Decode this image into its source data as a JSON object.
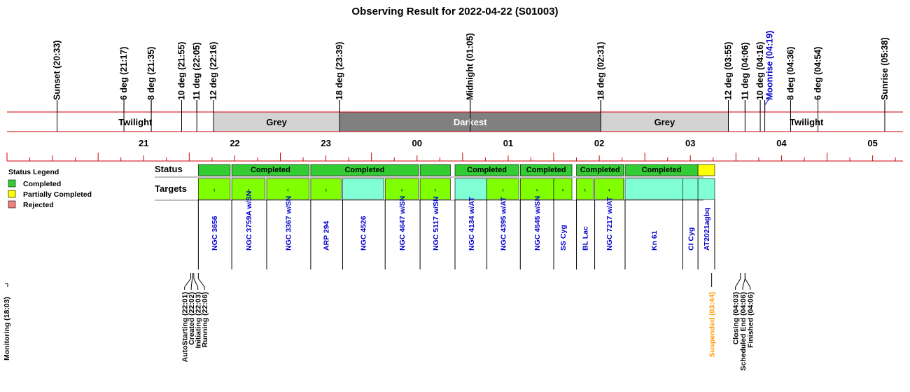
{
  "title": "Observing Result for 2022-04-22 (S01003)",
  "colors": {
    "axis_line": "#cc0000",
    "twilight": "#ffffff",
    "grey": "#d3d3d3",
    "darkest": "#808080",
    "completed": "#33cc33",
    "partially_completed": "#ffff00",
    "rejected": "#f08080",
    "target_green": "#80ff00",
    "target_cyan": "#80ffd4",
    "target_label": "#0000cc",
    "moonrise": "#0000cc",
    "suspended": "#ff9900"
  },
  "chart_data": {
    "type": "timeline",
    "time_range": [
      "20:00",
      "05:50"
    ],
    "sun_events": [
      {
        "label": "Sunset (20:33)",
        "time": "20:33"
      },
      {
        "label": "6 deg (21:17)",
        "time": "21:17"
      },
      {
        "label": "8 deg (21:35)",
        "time": "21:35"
      },
      {
        "label": "10 deg (21:55)",
        "time": "21:55"
      },
      {
        "label": "11 deg (22:05)",
        "time": "22:05"
      },
      {
        "label": "12 deg (22:16)",
        "time": "22:16"
      },
      {
        "label": "18 deg (23:39)",
        "time": "23:39"
      },
      {
        "label": "Midnight (01:05)",
        "time": "01:05"
      },
      {
        "label": "18 deg (02:31)",
        "time": "02:31"
      },
      {
        "label": "12 deg (03:55)",
        "time": "03:55"
      },
      {
        "label": "11 deg (04:06)",
        "time": "04:06"
      },
      {
        "label": "10 deg (04:16)",
        "time": "04:16"
      },
      {
        "label": "Moonrise (04:19)",
        "time": "04:19",
        "highlight": "moonrise"
      },
      {
        "label": "8 deg (04:36)",
        "time": "04:36"
      },
      {
        "label": "6 deg (04:54)",
        "time": "04:54"
      },
      {
        "label": "Sunrise (05:38)",
        "time": "05:38"
      }
    ],
    "phases": [
      {
        "name": "Twilight",
        "start": "20:33",
        "end": "22:16",
        "shade": "twilight"
      },
      {
        "name": "Grey",
        "start": "22:16",
        "end": "23:39",
        "shade": "grey"
      },
      {
        "name": "Darkest",
        "start": "23:39",
        "end": "02:31",
        "shade": "darkest"
      },
      {
        "name": "Grey",
        "start": "02:31",
        "end": "03:55",
        "shade": "grey"
      },
      {
        "name": "Twilight",
        "start": "03:55",
        "end": "05:38",
        "shade": "twilight"
      }
    ],
    "hour_labels": [
      "21",
      "22",
      "23",
      "00",
      "01",
      "02",
      "03",
      "04",
      "05"
    ],
    "status_label": "Status",
    "targets_label": "Targets",
    "status_blocks": [
      {
        "start": "22:06",
        "end": "22:27",
        "status": "completed",
        "label": ""
      },
      {
        "start": "22:28",
        "end": "23:19",
        "status": "completed",
        "label": "Completed"
      },
      {
        "start": "23:20",
        "end": "00:31",
        "status": "completed",
        "label": "Completed"
      },
      {
        "start": "00:32",
        "end": "00:52",
        "status": "completed",
        "label": ""
      },
      {
        "start": "00:55",
        "end": "01:37",
        "status": "completed",
        "label": "Completed"
      },
      {
        "start": "01:38",
        "end": "02:12",
        "status": "completed",
        "label": "Completed"
      },
      {
        "start": "02:15",
        "end": "02:46",
        "status": "completed",
        "label": "Completed"
      },
      {
        "start": "02:47",
        "end": "03:35",
        "status": "completed",
        "label": "Completed"
      },
      {
        "start": "03:35",
        "end": "03:46",
        "status": "partially_completed",
        "label": ""
      }
    ],
    "targets": [
      {
        "name": "NGC 3656",
        "start": "22:06",
        "end": "22:27",
        "shade": "green",
        "tick": true
      },
      {
        "name": "NGC 3759A w/SN",
        "start": "22:28",
        "end": "22:50",
        "shade": "green",
        "tick": true
      },
      {
        "name": "NGC 3367 w/SN",
        "start": "22:51",
        "end": "23:19",
        "shade": "green",
        "tick": true
      },
      {
        "name": "ARP 294",
        "start": "23:20",
        "end": "23:40",
        "shade": "green",
        "tick": true
      },
      {
        "name": "NGC 4526",
        "start": "23:41",
        "end": "00:08",
        "shade": "cyan",
        "tick": false
      },
      {
        "name": "NGC 4647 w/SN",
        "start": "00:09",
        "end": "00:31",
        "shade": "green",
        "tick": true
      },
      {
        "name": "NGC 5117 w/SN",
        "start": "00:32",
        "end": "00:52",
        "shade": "green",
        "tick": true
      },
      {
        "name": "NGC 4134 w/AT",
        "start": "00:55",
        "end": "01:16",
        "shade": "cyan",
        "tick": false
      },
      {
        "name": "NGC 4395 w/AT",
        "start": "01:16",
        "end": "01:37",
        "shade": "green",
        "tick": true
      },
      {
        "name": "NGC 4545 w/SN",
        "start": "01:38",
        "end": "02:00",
        "shade": "green",
        "tick": true
      },
      {
        "name": "SS Cyg",
        "start": "02:00",
        "end": "02:12",
        "shade": "green",
        "tick": true
      },
      {
        "name": "BL Lac",
        "start": "02:15",
        "end": "02:26",
        "shade": "green",
        "tick": true
      },
      {
        "name": "NGC 7217 w/AT",
        "start": "02:27",
        "end": "02:46",
        "shade": "green",
        "tick": true
      },
      {
        "name": "Kn 61",
        "start": "02:47",
        "end": "03:25",
        "shade": "cyan",
        "tick": false
      },
      {
        "name": "CI Cyg",
        "start": "03:25",
        "end": "03:35",
        "shade": "cyan",
        "tick": false
      },
      {
        "name": "AT2021agbq",
        "start": "03:35",
        "end": "03:46",
        "shade": "cyan",
        "tick": false
      }
    ],
    "legend": {
      "title": "Status Legend",
      "items": [
        {
          "label": "Completed",
          "status": "completed"
        },
        {
          "label": "Partially Completed",
          "status": "partially_completed"
        },
        {
          "label": "Rejected",
          "status": "rejected"
        }
      ]
    },
    "system_events": [
      {
        "label": "Monitoring (18:03)",
        "time": "18:03",
        "group": "edge"
      },
      {
        "label": "AutoStarting (22:01)",
        "time": "22:01",
        "group": "start"
      },
      {
        "label": "Created (22:02)",
        "time": "22:02",
        "group": "start"
      },
      {
        "label": "Initiating (22:03)",
        "time": "22:03",
        "group": "start"
      },
      {
        "label": "Running (22:06)",
        "time": "22:06",
        "group": "start"
      },
      {
        "label": "Suspended (03:44)",
        "time": "03:44",
        "group": "suspend",
        "highlight": "suspended"
      },
      {
        "label": "Closing (04:03)",
        "time": "04:03",
        "group": "end"
      },
      {
        "label": "Scheduled End (04:06)",
        "time": "04:06",
        "group": "end"
      },
      {
        "label": "Finished (04:06)",
        "time": "04:06",
        "group": "end"
      }
    ]
  }
}
